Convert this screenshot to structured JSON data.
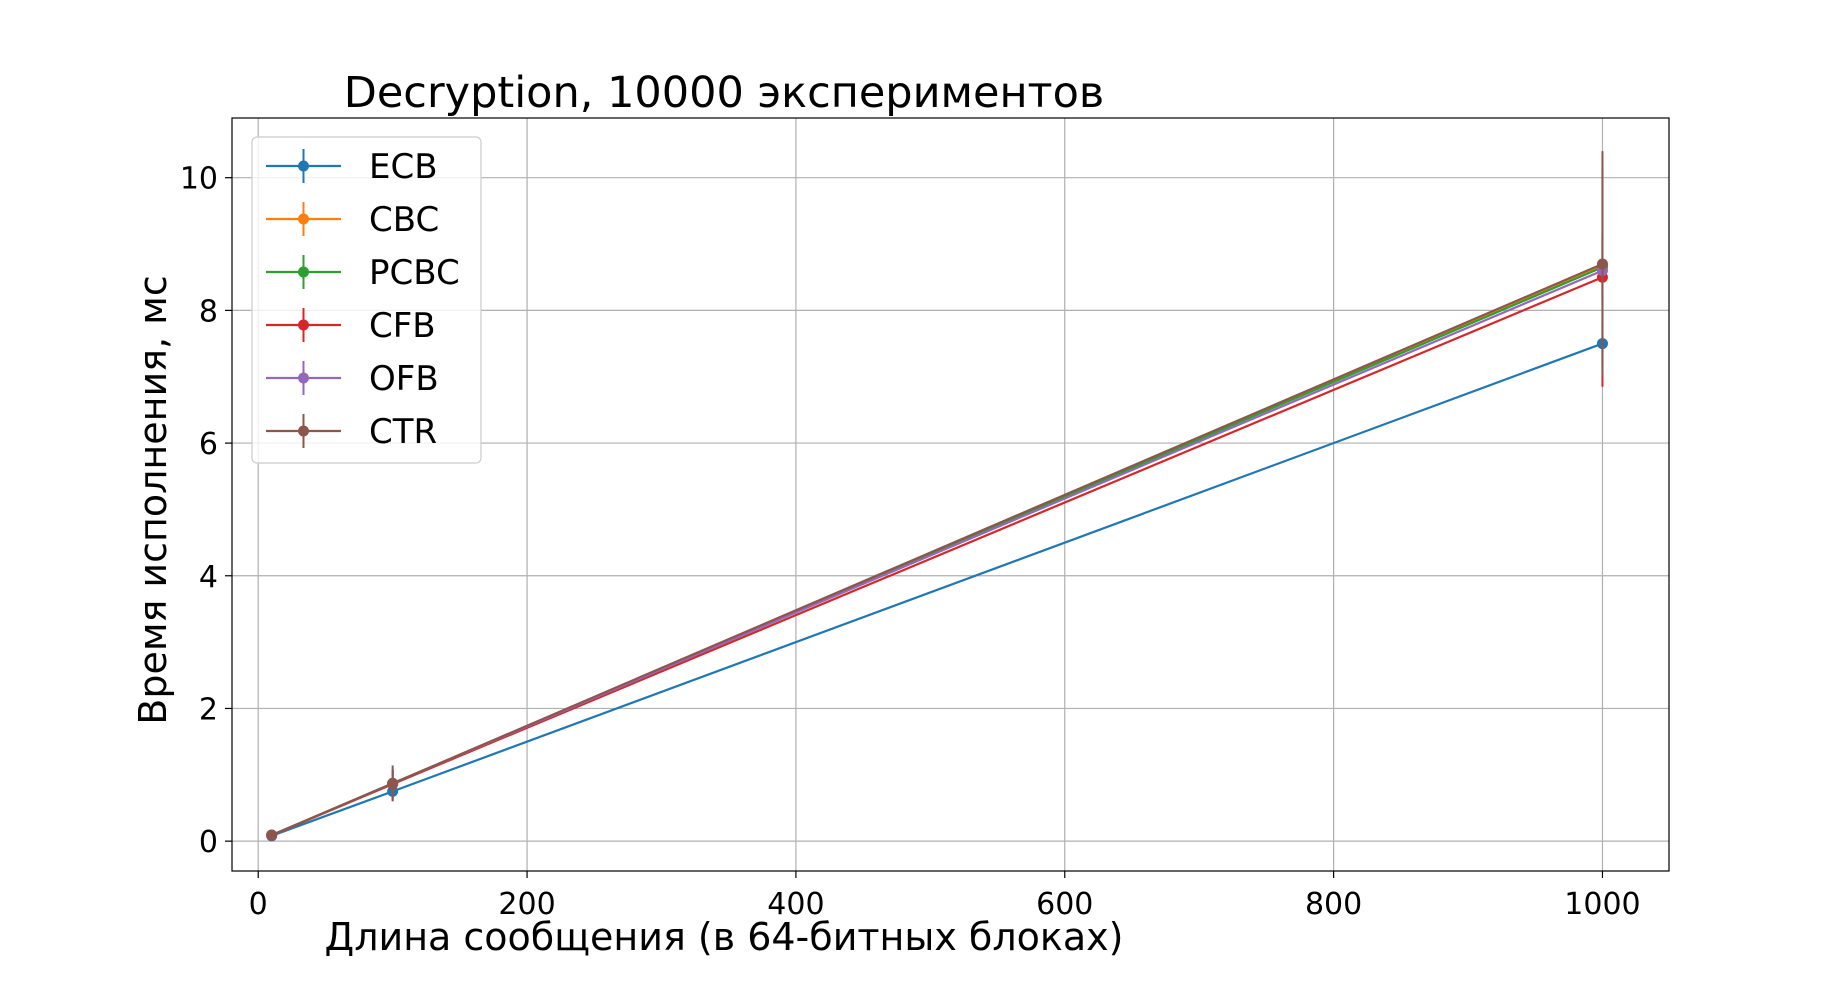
{
  "chart_data": {
    "type": "line",
    "title": "Decryption, 10000 экспериментов",
    "xlabel": "Длина сообщения (в 64-битных блоках)",
    "ylabel": "Время исполнения, мс",
    "xlim": [
      -19.5,
      1049.5
    ],
    "ylim": [
      -0.45,
      10.9
    ],
    "xticks": [
      0,
      200,
      400,
      600,
      800,
      1000
    ],
    "yticks": [
      0,
      2,
      4,
      6,
      8,
      10
    ],
    "xtick_labels": [
      "0",
      "200",
      "400",
      "600",
      "800",
      "1000"
    ],
    "ytick_labels": [
      "0",
      "2",
      "4",
      "6",
      "8",
      "10"
    ],
    "grid": true,
    "legend_position": "top-left",
    "x": [
      10,
      100,
      1000
    ],
    "series": [
      {
        "name": "ECB",
        "color": "#1f77b4",
        "values": [
          0.08,
          0.75,
          7.5
        ],
        "errors": [
          0.02,
          0.14,
          0.3
        ]
      },
      {
        "name": "CBC",
        "color": "#ff7f0e",
        "values": [
          0.09,
          0.86,
          8.68
        ],
        "errors": [
          0.02,
          0.2,
          0.5
        ]
      },
      {
        "name": "PCBC",
        "color": "#2ca02c",
        "values": [
          0.09,
          0.87,
          8.65
        ],
        "errors": [
          0.02,
          0.2,
          0.5
        ]
      },
      {
        "name": "CFB",
        "color": "#d62728",
        "values": [
          0.09,
          0.86,
          8.5
        ],
        "errors": [
          0.02,
          0.22,
          1.65
        ]
      },
      {
        "name": "OFB",
        "color": "#9467bd",
        "values": [
          0.09,
          0.87,
          8.6
        ],
        "errors": [
          0.02,
          0.2,
          0.5
        ]
      },
      {
        "name": "CTR",
        "color": "#8c564b",
        "values": [
          0.09,
          0.87,
          8.7
        ],
        "errors": [
          0.02,
          0.27,
          1.7
        ]
      }
    ]
  }
}
